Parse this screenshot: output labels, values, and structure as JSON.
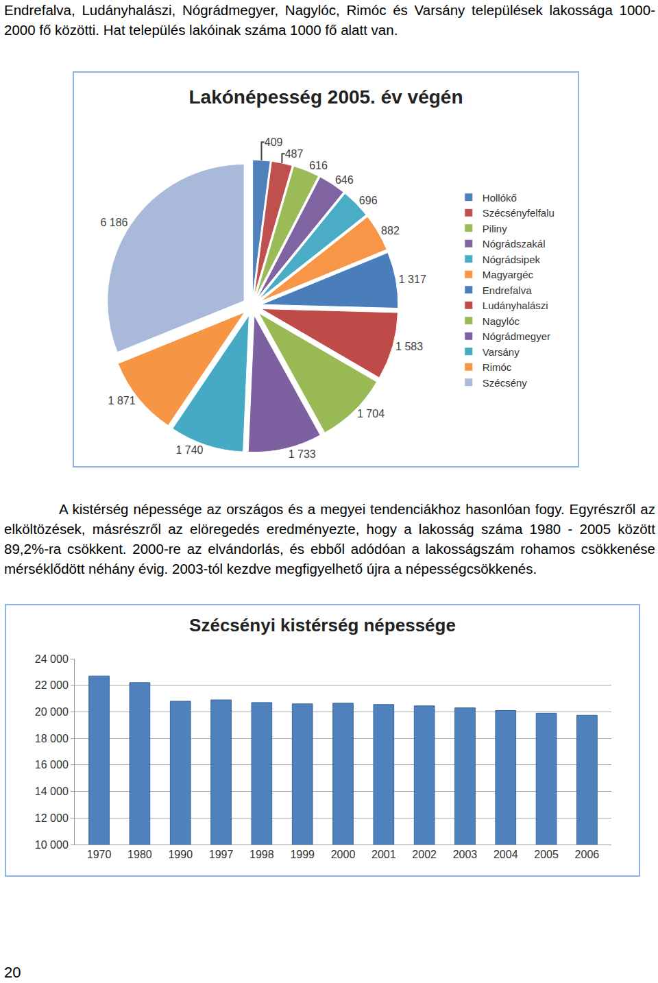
{
  "paragraphs": [
    "Endrefalva, Ludányhalászi, Nógrádmegyer, Nagylóc, Rimóc és Varsány települések lakossága 1000-2000 fő közötti. Hat település lakóinak száma 1000 fő alatt van.",
    "A kistérség népessége az országos és a megyei tendenciákhoz hasonlóan fogy. Egyrészről az elköltözések, másrészről az elöregedés eredményezte, hogy a lakosság száma 1980 - 2005 között 89,2%-ra csökkent. 2000-re az elvándorlás, és ebből adódóan a lakosságszám rohamos csökkenése mérséklődött néhány évig. 2003-tól kezdve megfigyelhető újra a népességcsökkenés."
  ],
  "page_number": "20",
  "chart_data": [
    {
      "type": "pie",
      "title": "Lakónépesség 2005. év végén",
      "categories": [
        "Hollókő",
        "Szécsényfelfalu",
        "Piliny",
        "Nógrádszakál",
        "Nógrádsipek",
        "Magyargéc",
        "Endrefalva",
        "Ludányhalászi",
        "Nagylóc",
        "Nógrádmegyer",
        "Varsány",
        "Rimóc",
        "Szécsény"
      ],
      "values": [
        409,
        487,
        616,
        646,
        696,
        882,
        1317,
        1583,
        1704,
        1733,
        1740,
        1871,
        6186
      ],
      "value_labels": [
        "409",
        "487",
        "616",
        "646",
        "696",
        "882",
        "1 317",
        "1 583",
        "1 704",
        "1 733",
        "1 740",
        "1 871",
        "6 186"
      ],
      "colors": [
        "#4f81bd",
        "#c0504d",
        "#9bbb59",
        "#8064a2",
        "#4bacc6",
        "#f79646",
        "#4a7ebb",
        "#be4b48",
        "#98b954",
        "#7d60a0",
        "#46aac5",
        "#f69544",
        "#a9b9d9"
      ],
      "data_labels": true,
      "legend": "right"
    },
    {
      "type": "bar",
      "title": "Szécsényi kistérség népessége",
      "categories": [
        "1970",
        "1980",
        "1990",
        "1997",
        "1998",
        "1999",
        "2000",
        "2001",
        "2002",
        "2003",
        "2004",
        "2005",
        "2006"
      ],
      "values": [
        22700,
        22200,
        20800,
        20900,
        20700,
        20600,
        20650,
        20550,
        20450,
        20300,
        20100,
        19900,
        19750
      ],
      "color": "#4f81bd",
      "ylim": [
        10000,
        24000
      ],
      "yticks": [
        {
          "value": 10000,
          "label": "10 000"
        },
        {
          "value": 12000,
          "label": "12 000"
        },
        {
          "value": 14000,
          "label": "14 000"
        },
        {
          "value": 16000,
          "label": "16 000"
        },
        {
          "value": 18000,
          "label": "18 000"
        },
        {
          "value": 20000,
          "label": "20 000"
        },
        {
          "value": 22000,
          "label": "22 000"
        },
        {
          "value": 24000,
          "label": "24 000"
        }
      ],
      "grid": true
    }
  ]
}
